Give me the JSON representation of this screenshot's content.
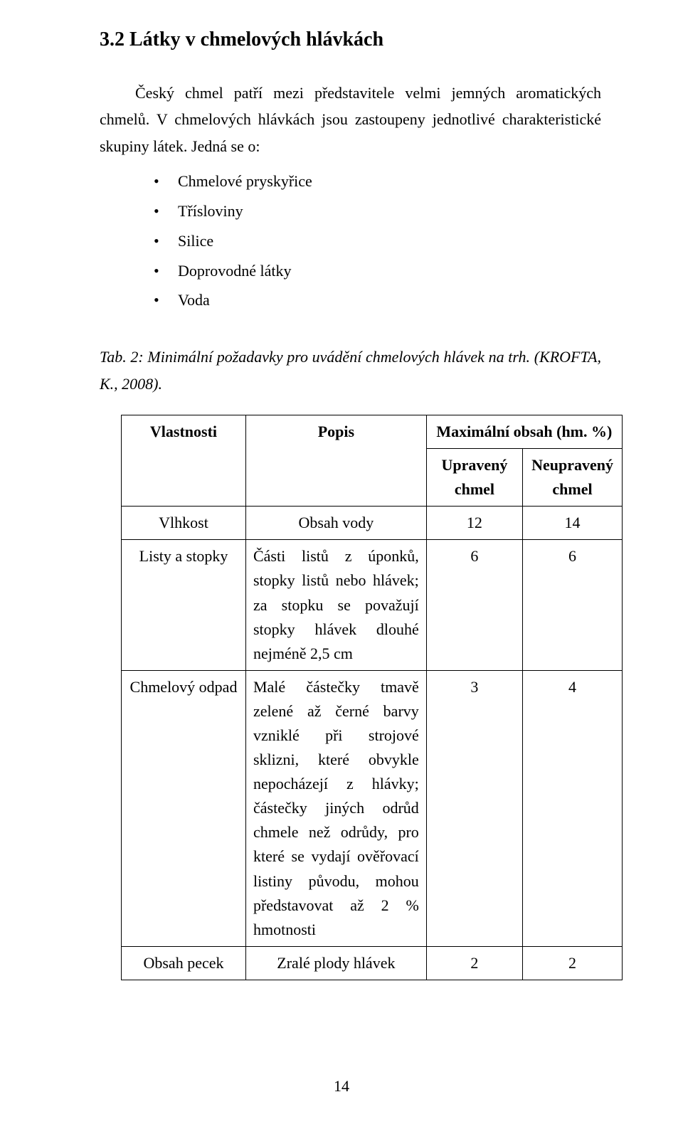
{
  "section": {
    "number_title": "3.2  Látky v chmelových hlávkách"
  },
  "intro": {
    "para1": "Český chmel patří mezi představitele velmi jemných aromatických chmelů. V chmelových hlávkách jsou zastoupeny jednotlivé charakteristické skupiny látek. Jedná se o:"
  },
  "bullets": {
    "i1": "Chmelové pryskyřice",
    "i2": "Třísloviny",
    "i3": "Silice",
    "i4": "Doprovodné látky",
    "i5": "Voda"
  },
  "caption": {
    "text": "Tab. 2: Minimální požadavky pro uvádění chmelových hlávek na trh. (KROFTA, K., 2008)."
  },
  "table": {
    "head": {
      "prop": "Vlastnosti",
      "desc": "Popis",
      "max": "Maximální obsah (hm. %)",
      "upr": "Upravený chmel",
      "neupr": "Neupravený chmel"
    },
    "rows": {
      "r1": {
        "prop": "Vlhkost",
        "desc": "Obsah vody",
        "upr": "12",
        "neupr": "14"
      },
      "r2": {
        "prop": "Listy a stopky",
        "desc": "Části listů z úponků, stopky listů nebo hlávek; za stopku se považují stopky hlávek dlouhé nejméně 2,5 cm",
        "upr": "6",
        "neupr": "6"
      },
      "r3": {
        "prop": "Chmelový odpad",
        "desc": "Malé částečky tmavě zelené až černé barvy vzniklé při strojové sklizni, které obvykle nepocházejí z hlávky; částečky jiných odrůd chmele než odrůdy, pro které se vydají ověřovací listiny původu, mohou představovat až 2 % hmotnosti",
        "upr": "3",
        "neupr": "4"
      },
      "r4": {
        "prop": "Obsah pecek",
        "desc": "Zralé plody hlávek",
        "upr": "2",
        "neupr": "2"
      }
    }
  },
  "pagenum": "14"
}
